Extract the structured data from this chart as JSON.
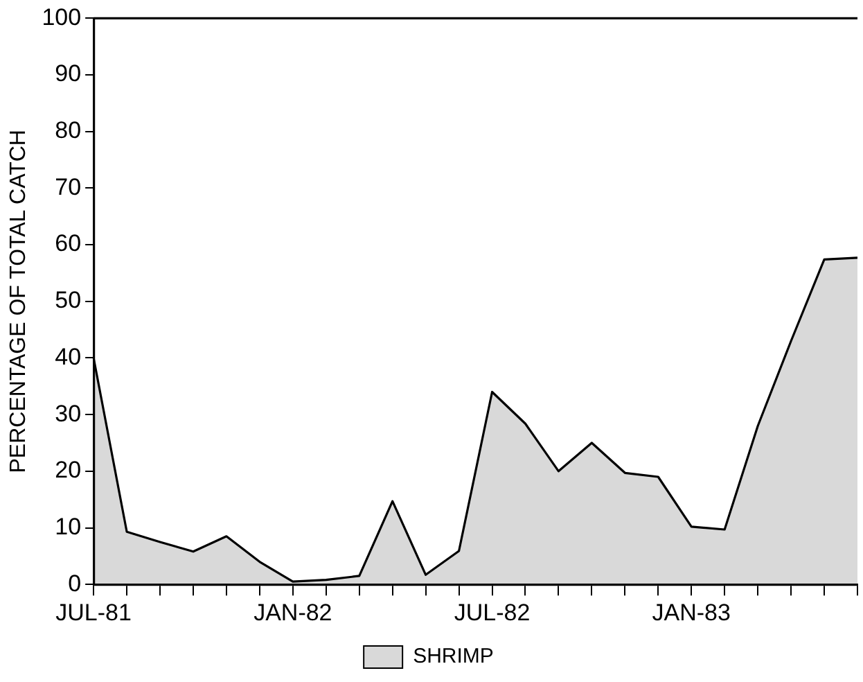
{
  "chart_data": {
    "type": "area",
    "ylabel": "PERCENTAGE OF TOTAL CATCH",
    "categories": [
      "JUL-81",
      null,
      null,
      null,
      null,
      null,
      "JAN-82",
      null,
      null,
      null,
      null,
      null,
      "JUL-82",
      null,
      null,
      null,
      null,
      null,
      "JAN-83",
      null,
      null,
      null,
      null,
      null
    ],
    "series": [
      {
        "name": "SHRIMP",
        "color": "#000000",
        "values": [
          40,
          9.3,
          7.5,
          5.8,
          8.5,
          4,
          0.5,
          0.8,
          1.5,
          14.7,
          1.7,
          5.9,
          34,
          28.4,
          20,
          25,
          19.7,
          19,
          10.2,
          9.7,
          28,
          43,
          57.4,
          57.7
        ]
      }
    ],
    "ylim": [
      0,
      100
    ],
    "yticks": [
      0,
      10,
      20,
      30,
      40,
      50,
      60,
      70,
      80,
      90,
      100
    ],
    "grid": false,
    "legend": "bottom"
  }
}
